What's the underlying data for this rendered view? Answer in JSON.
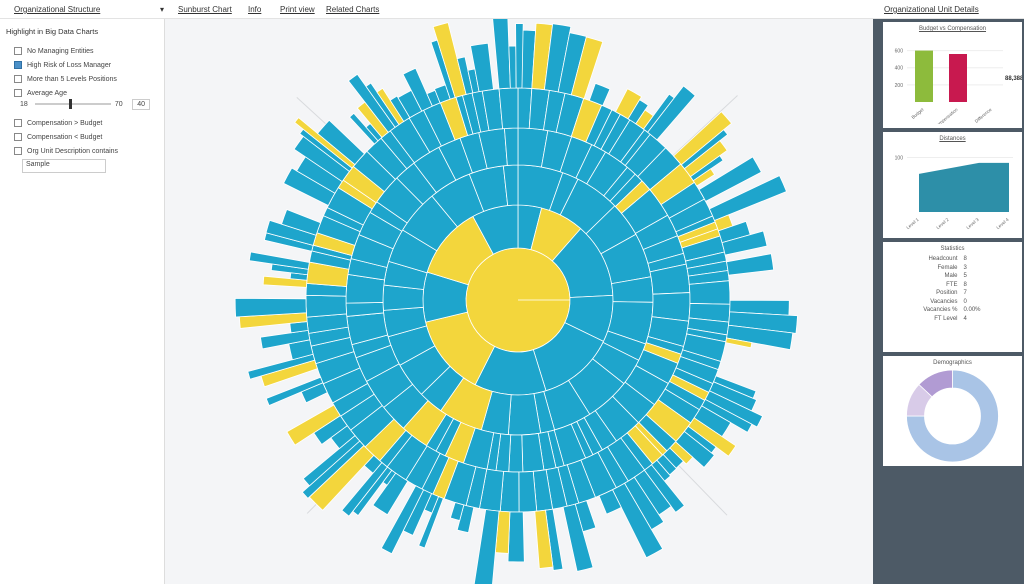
{
  "toolbar": {
    "structure": "Organizational Structure",
    "items": [
      "Sunburst Chart",
      "Info",
      "Print view",
      "Related Charts"
    ],
    "details": "Organizational Unit Details"
  },
  "sidebar": {
    "title": "Highlight in Big Data Charts",
    "options": [
      {
        "label": "No Managing Entities",
        "checked": false
      },
      {
        "label": "High Risk of Loss Manager",
        "checked": true
      },
      {
        "label": "More than 5 Levels Positions",
        "checked": false
      },
      {
        "label": "Average Age",
        "checked": false
      }
    ],
    "slider": {
      "min": 18,
      "max": 70,
      "value": 40
    },
    "options2": [
      {
        "label": "Compensation > Budget",
        "checked": false
      },
      {
        "label": "Compensation < Budget",
        "checked": false
      },
      {
        "label": "Org Unit Description contains",
        "checked": false
      }
    ],
    "search": "Sample"
  },
  "budget": {
    "title": "Budget vs Compensation",
    "categories": [
      "Budget",
      "Compensation",
      "Difference"
    ],
    "values": [
      600,
      560,
      null
    ],
    "colors": [
      "#8dbb3c",
      "#c8194f",
      "#999"
    ],
    "total": "88,388",
    "ylim": [
      0,
      700
    ],
    "yticks": [
      200,
      400,
      600
    ]
  },
  "distances": {
    "title": "Distances",
    "categories": [
      "Level 1",
      "Level 2",
      "Level 3",
      "Level 4"
    ],
    "values": [
      70,
      80,
      90,
      90
    ],
    "ylim": [
      0,
      110
    ],
    "yticks": [
      100
    ],
    "color": "#2d8fa8"
  },
  "statistics": {
    "title": "Statistics",
    "rows": [
      [
        "Headcount",
        "8"
      ],
      [
        "Female",
        "3"
      ],
      [
        "Male",
        "5"
      ],
      [
        "FTE",
        "8"
      ],
      [
        "Position",
        "7"
      ],
      [
        "Vacancies",
        "0"
      ],
      [
        "Vacancies %",
        "0.00%"
      ],
      [
        "FT Level",
        "4"
      ]
    ]
  },
  "demographics": {
    "title": "Demographics",
    "values": [
      75,
      12,
      13
    ],
    "colors": [
      "#a9c4e6",
      "#d8cbe8",
      "#b19bd3"
    ]
  }
}
